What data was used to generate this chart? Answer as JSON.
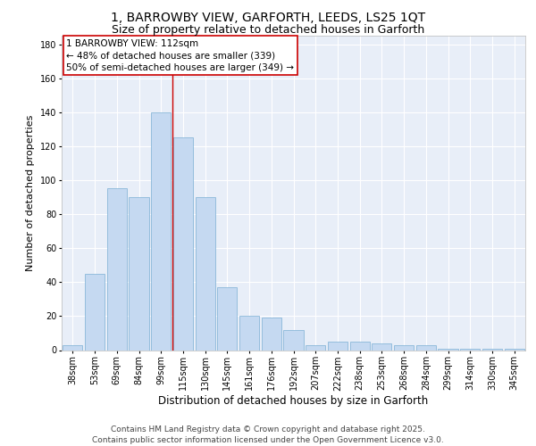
{
  "title": "1, BARROWBY VIEW, GARFORTH, LEEDS, LS25 1QT",
  "subtitle": "Size of property relative to detached houses in Garforth",
  "xlabel": "Distribution of detached houses by size in Garforth",
  "ylabel": "Number of detached properties",
  "categories": [
    "38sqm",
    "53sqm",
    "69sqm",
    "84sqm",
    "99sqm",
    "115sqm",
    "130sqm",
    "145sqm",
    "161sqm",
    "176sqm",
    "192sqm",
    "207sqm",
    "222sqm",
    "238sqm",
    "253sqm",
    "268sqm",
    "284sqm",
    "299sqm",
    "314sqm",
    "330sqm",
    "345sqm"
  ],
  "values": [
    3,
    45,
    95,
    90,
    140,
    125,
    90,
    37,
    20,
    19,
    12,
    3,
    5,
    5,
    4,
    3,
    3,
    1,
    1,
    1,
    1
  ],
  "bar_color": "#c5d9f1",
  "bar_edge_color": "#7bafd4",
  "background_color": "#e8eef8",
  "grid_color": "#ffffff",
  "vline_color": "#cc0000",
  "vline_pos": 4.5,
  "annotation_text": "1 BARROWBY VIEW: 112sqm\n← 48% of detached houses are smaller (339)\n50% of semi-detached houses are larger (349) →",
  "footer": "Contains HM Land Registry data © Crown copyright and database right 2025.\nContains public sector information licensed under the Open Government Licence v3.0.",
  "ylim": [
    0,
    185
  ],
  "yticks": [
    0,
    20,
    40,
    60,
    80,
    100,
    120,
    140,
    160,
    180
  ],
  "title_fontsize": 10,
  "subtitle_fontsize": 9,
  "xlabel_fontsize": 8.5,
  "ylabel_fontsize": 8,
  "tick_fontsize": 7,
  "annotation_fontsize": 7.5,
  "footer_fontsize": 6.5
}
